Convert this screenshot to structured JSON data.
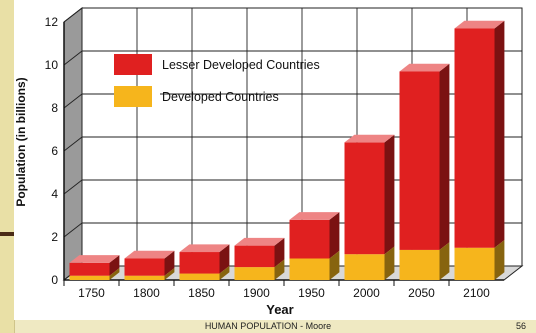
{
  "chart_data": {
    "type": "bar",
    "stacked": true,
    "three_d": true,
    "categories": [
      "1750",
      "1800",
      "1850",
      "1900",
      "1950",
      "2000",
      "2050",
      "2100"
    ],
    "series": [
      {
        "name": "Developed Countries",
        "color": "#f6b51c",
        "values": [
          0.2,
          0.2,
          0.3,
          0.6,
          1.0,
          1.2,
          1.4,
          1.5
        ]
      },
      {
        "name": "Lesser Developed Countries",
        "color": "#e02020",
        "values": [
          0.6,
          0.8,
          1.0,
          1.0,
          1.8,
          5.2,
          8.3,
          10.2
        ]
      }
    ],
    "xlabel": "Year",
    "ylabel": "Population (in billions)",
    "yticks": [
      0,
      2,
      4,
      6,
      8,
      10,
      12
    ],
    "ylim": [
      0,
      12
    ],
    "grid": true,
    "legend_position": "top-left"
  },
  "footer": {
    "text": "HUMAN POPULATION - Moore",
    "page": "56"
  },
  "colors": {
    "background_bar": "#e9e0a6",
    "accent_rule": "#4a2b16"
  }
}
